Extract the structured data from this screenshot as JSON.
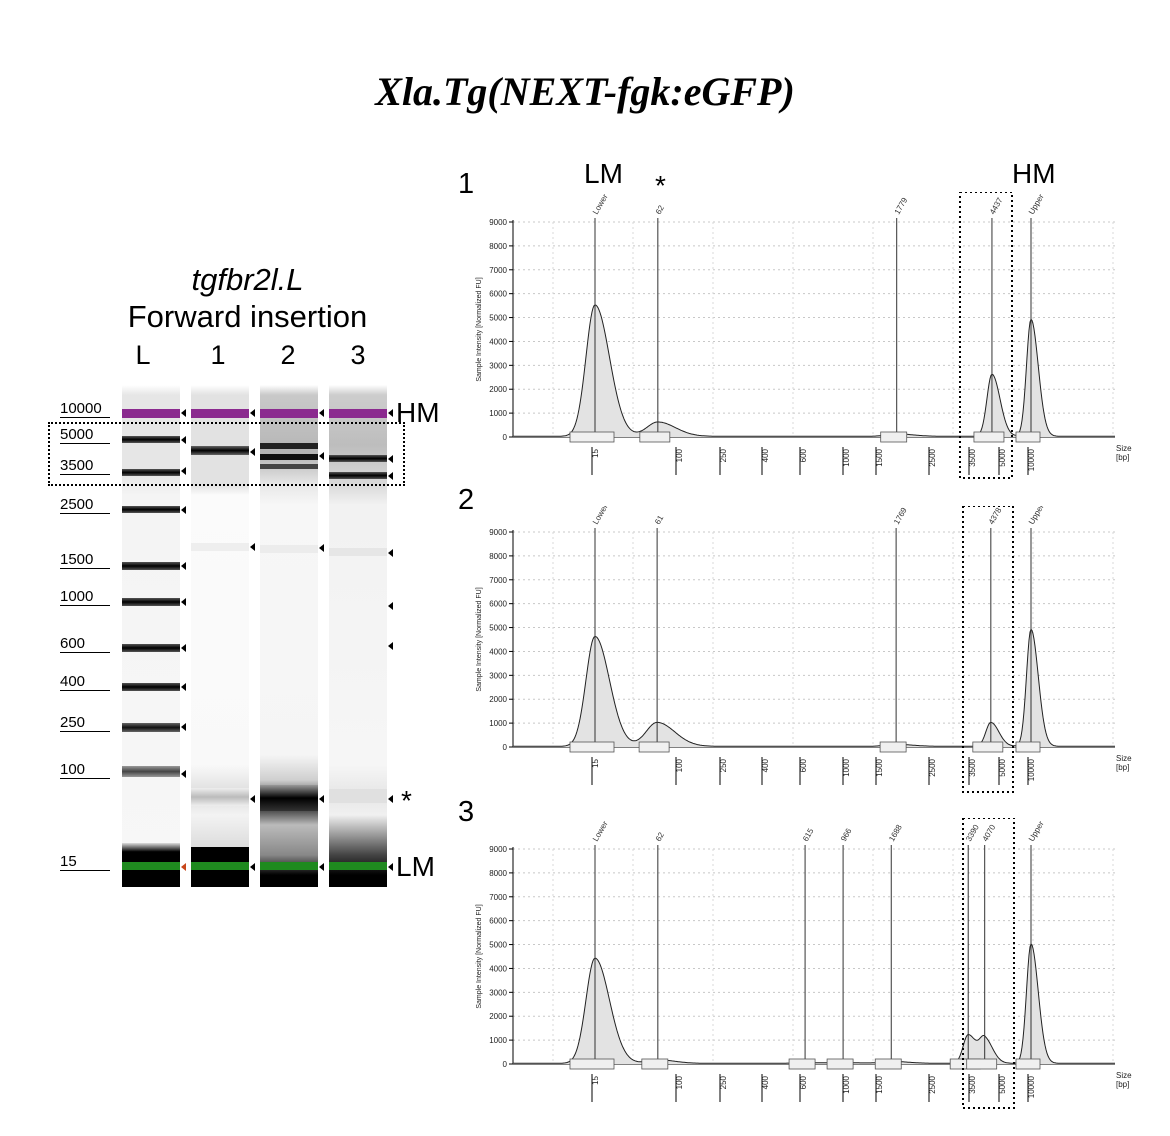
{
  "title": "Xla.Tg(NEXT-fgk:eGFP)",
  "gel": {
    "gene": "tgfbr2l.L",
    "insertion": "Forward insertion",
    "lanes": [
      "L",
      "1",
      "2",
      "3"
    ],
    "ladder_labels": [
      "10000",
      "5000",
      "3500",
      "2500",
      "1500",
      "1000",
      "600",
      "400",
      "250",
      "100",
      "15"
    ],
    "side_labels": {
      "hm": "HM",
      "star": "*",
      "lm": "LM"
    }
  },
  "annotations": {
    "lm": "LM",
    "star": "*",
    "hm": "HM"
  },
  "chart_data": [
    {
      "type": "line",
      "panel": "1",
      "ylabel": "Sample Intensity [Normalized FU]",
      "xlabel": "Size [bp]",
      "ylim": [
        0,
        9000
      ],
      "yticks": [
        "0",
        "1000",
        "2000",
        "3000",
        "4000",
        "5000",
        "6000",
        "7000",
        "8000",
        "9000"
      ],
      "xticks": [
        "15",
        "100",
        "250",
        "400",
        "600",
        "1000",
        "1500",
        "2500",
        "3500",
        "5000",
        "10000"
      ],
      "grid": true,
      "peaks": [
        {
          "label": "Lower",
          "size": 15,
          "height": 5500
        },
        {
          "label": "62",
          "size": 62,
          "height": 600
        },
        {
          "label": "1779",
          "size": 1779,
          "height": 100
        },
        {
          "label": "4437",
          "size": 4437,
          "height": 2600
        },
        {
          "label": "Upper",
          "size": 10000,
          "height": 4900
        }
      ]
    },
    {
      "type": "line",
      "panel": "2",
      "ylabel": "Sample Intensity [Normalized FU]",
      "xlabel": "Size [bp]",
      "ylim": [
        0,
        9000
      ],
      "yticks": [
        "0",
        "1000",
        "2000",
        "3000",
        "4000",
        "5000",
        "6000",
        "7000",
        "8000",
        "9000"
      ],
      "xticks": [
        "15",
        "100",
        "250",
        "400",
        "600",
        "1000",
        "1500",
        "2500",
        "3500",
        "5000",
        "10000"
      ],
      "grid": true,
      "peaks": [
        {
          "label": "Lower",
          "size": 15,
          "height": 4600
        },
        {
          "label": "61",
          "size": 61,
          "height": 1000
        },
        {
          "label": "1769",
          "size": 1769,
          "height": 80
        },
        {
          "label": "4378",
          "size": 4378,
          "height": 1000
        },
        {
          "label": "Upper",
          "size": 10000,
          "height": 4900
        }
      ]
    },
    {
      "type": "line",
      "panel": "3",
      "ylabel": "Sample Intensity [Normalized FU]",
      "xlabel": "Size [bp]",
      "ylim": [
        0,
        9000
      ],
      "yticks": [
        "0",
        "1000",
        "2000",
        "3000",
        "4000",
        "5000",
        "6000",
        "7000",
        "8000",
        "9000"
      ],
      "xticks": [
        "15",
        "100",
        "250",
        "400",
        "600",
        "1000",
        "1500",
        "2500",
        "3500",
        "5000",
        "10000"
      ],
      "grid": true,
      "peaks": [
        {
          "label": "Lower",
          "size": 15,
          "height": 4400
        },
        {
          "label": "62",
          "size": 62,
          "height": 150
        },
        {
          "label": "615",
          "size": 615,
          "height": 30
        },
        {
          "label": "966",
          "size": 966,
          "height": 30
        },
        {
          "label": "1688",
          "size": 1688,
          "height": 80
        },
        {
          "label": "3390",
          "size": 3390,
          "height": 1200
        },
        {
          "label": "4070",
          "size": 4070,
          "height": 1000
        },
        {
          "label": "Upper",
          "size": 10000,
          "height": 5000
        }
      ]
    }
  ],
  "colors": {
    "hm_band": "#8b2a8f",
    "lm_band": "#1f8a1f",
    "peak_fill": "#e3e3e3"
  }
}
